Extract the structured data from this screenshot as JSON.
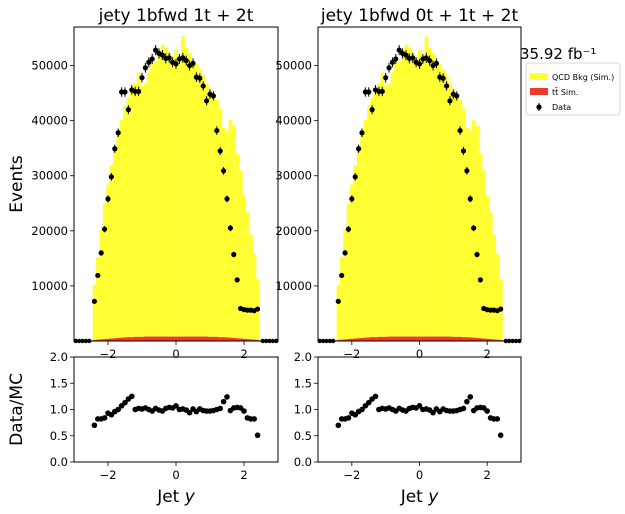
{
  "lumi_label": "35.92 fb⁻¹",
  "legend": [
    {
      "label": "QCD Bkg (Sim.)",
      "color": "#ffff33",
      "kind": "patch"
    },
    {
      "label": "tt̄ Sim.",
      "color": "#ee3a2d",
      "kind": "patch"
    },
    {
      "label": "Data",
      "color": "#000000",
      "kind": "marker"
    }
  ],
  "chart_data": [
    {
      "type": "bar",
      "title": "jety  1bfwd 1t + 2t",
      "xlabel": "",
      "ylabel": "Events",
      "xlim": [
        -3,
        3
      ],
      "ylim": [
        0,
        57000
      ],
      "x_ticks": [
        -2,
        0,
        2
      ],
      "y_ticks": [
        10000,
        20000,
        30000,
        40000,
        50000
      ],
      "y_tick_labels": [
        "10000",
        "20000",
        "30000",
        "40000",
        "50000"
      ],
      "bin_centers": [
        -2.4,
        -2.3,
        -2.2,
        -2.1,
        -2.0,
        -1.9,
        -1.8,
        -1.7,
        -1.6,
        -1.5,
        -1.4,
        -1.3,
        -1.2,
        -1.1,
        -1.0,
        -0.9,
        -0.8,
        -0.7,
        -0.6,
        -0.5,
        -0.4,
        -0.3,
        -0.2,
        -0.1,
        0.0,
        0.1,
        0.2,
        0.3,
        0.4,
        0.5,
        0.6,
        0.7,
        0.8,
        0.9,
        1.0,
        1.1,
        1.2,
        1.3,
        1.4,
        1.5,
        1.6,
        1.7,
        1.8,
        1.9,
        2.0,
        2.1,
        2.2,
        2.3,
        2.4
      ],
      "series": [
        {
          "name": "QCD Bkg (Sim.)",
          "color": "#ffff33",
          "values": [
            10000,
            15000,
            20000,
            24500,
            28000,
            31500,
            34500,
            37500,
            39500,
            42000,
            43500,
            44500,
            46000,
            48000,
            45500,
            46000,
            48000,
            49500,
            50000,
            51500,
            53000,
            52500,
            51500,
            50500,
            52000,
            51000,
            54500,
            52500,
            51500,
            50000,
            49500,
            48500,
            47500,
            46000,
            45000,
            44000,
            43000,
            41500,
            38000,
            37500,
            39500,
            38500,
            33500,
            30500,
            26000,
            23000,
            19000,
            15500,
            11000
          ]
        },
        {
          "name": "tt̄ Sim.",
          "color": "#ee3a2d",
          "values": [
            200,
            250,
            300,
            350,
            400,
            450,
            500,
            550,
            600,
            650,
            700,
            700,
            750,
            750,
            750,
            800,
            800,
            800,
            800,
            800,
            800,
            800,
            800,
            800,
            800,
            800,
            800,
            800,
            800,
            800,
            800,
            800,
            800,
            800,
            750,
            750,
            750,
            700,
            700,
            650,
            600,
            550,
            500,
            450,
            400,
            350,
            300,
            250,
            200
          ]
        },
        {
          "name": "Data",
          "color": "#000000",
          "values": [
            7200,
            11900,
            16000,
            20300,
            25800,
            29800,
            34900,
            37800,
            45200,
            45200,
            42000,
            45600,
            45300,
            45300,
            47800,
            49600,
            50600,
            51200,
            52800,
            52200,
            51900,
            51300,
            51400,
            50600,
            50300,
            51200,
            51400,
            50900,
            50000,
            50400,
            47900,
            47700,
            46300,
            43600,
            44800,
            44500,
            38200,
            34500,
            30900,
            25800,
            20500,
            15700,
            11100,
            5900,
            5700,
            5600,
            5600,
            5500,
            5800
          ]
        }
      ],
      "zero_data_outside": true
    },
    {
      "type": "bar",
      "title": "jety  1bfwd 0t + 1t + 2t",
      "xlabel": "",
      "ylabel": "",
      "xlim": [
        -3,
        3
      ],
      "ylim": [
        0,
        57000
      ],
      "x_ticks": [
        -2,
        0,
        2
      ],
      "y_ticks": [
        10000,
        20000,
        30000,
        40000,
        50000
      ],
      "y_tick_labels": [
        "10000",
        "20000",
        "30000",
        "40000",
        "50000"
      ],
      "bin_centers": [
        -2.4,
        -2.3,
        -2.2,
        -2.1,
        -2.0,
        -1.9,
        -1.8,
        -1.7,
        -1.6,
        -1.5,
        -1.4,
        -1.3,
        -1.2,
        -1.1,
        -1.0,
        -0.9,
        -0.8,
        -0.7,
        -0.6,
        -0.5,
        -0.4,
        -0.3,
        -0.2,
        -0.1,
        0.0,
        0.1,
        0.2,
        0.3,
        0.4,
        0.5,
        0.6,
        0.7,
        0.8,
        0.9,
        1.0,
        1.1,
        1.2,
        1.3,
        1.4,
        1.5,
        1.6,
        1.7,
        1.8,
        1.9,
        2.0,
        2.1,
        2.2,
        2.3,
        2.4
      ],
      "series": [
        {
          "name": "QCD Bkg (Sim.)",
          "color": "#ffff33",
          "values": [
            10000,
            15000,
            20000,
            24500,
            28000,
            31500,
            34500,
            37500,
            39500,
            42000,
            43500,
            44500,
            46000,
            48000,
            45500,
            46000,
            48000,
            49500,
            50000,
            51500,
            53000,
            52500,
            51500,
            50500,
            52000,
            51000,
            54500,
            52500,
            51500,
            50000,
            49500,
            48500,
            47500,
            46000,
            45000,
            44000,
            43000,
            41500,
            38000,
            37500,
            39500,
            38500,
            33500,
            30500,
            26000,
            23000,
            19000,
            15500,
            11000
          ]
        },
        {
          "name": "tt̄ Sim.",
          "color": "#ee3a2d",
          "values": [
            200,
            250,
            300,
            350,
            400,
            450,
            500,
            550,
            600,
            650,
            700,
            700,
            750,
            750,
            750,
            800,
            800,
            800,
            800,
            800,
            800,
            800,
            800,
            800,
            800,
            800,
            800,
            800,
            800,
            800,
            800,
            800,
            800,
            800,
            750,
            750,
            750,
            700,
            700,
            650,
            600,
            550,
            500,
            450,
            400,
            350,
            300,
            250,
            200
          ]
        },
        {
          "name": "Data",
          "color": "#000000",
          "values": [
            7200,
            11900,
            16000,
            20300,
            25800,
            29800,
            34900,
            37800,
            45200,
            45200,
            42000,
            45600,
            45300,
            45300,
            47800,
            49600,
            50600,
            51200,
            52800,
            52200,
            51900,
            51300,
            51400,
            50600,
            50300,
            51200,
            51400,
            50900,
            50000,
            50400,
            47900,
            47700,
            46300,
            43600,
            44800,
            44500,
            38200,
            34500,
            30900,
            25800,
            20500,
            15700,
            11100,
            5900,
            5700,
            5600,
            5600,
            5500,
            5800
          ]
        }
      ],
      "zero_data_outside": true
    },
    {
      "type": "scatter",
      "title": "",
      "xlabel": "Jet y",
      "ylabel": "Data/MC",
      "xlim": [
        -3,
        3
      ],
      "ylim": [
        0,
        2
      ],
      "x_ticks": [
        -2,
        0,
        2
      ],
      "y_ticks": [
        0,
        0.5,
        1,
        1.5,
        2
      ],
      "y_tick_labels": [
        "0.0",
        "0.5",
        "1.0",
        "1.5",
        "2.0"
      ],
      "x": [
        -2.4,
        -2.3,
        -2.2,
        -2.1,
        -2.0,
        -1.9,
        -1.8,
        -1.7,
        -1.6,
        -1.5,
        -1.4,
        -1.3,
        -1.2,
        -1.1,
        -1.0,
        -0.9,
        -0.8,
        -0.7,
        -0.6,
        -0.5,
        -0.4,
        -0.3,
        -0.2,
        -0.1,
        0.0,
        0.1,
        0.2,
        0.3,
        0.4,
        0.5,
        0.6,
        0.7,
        0.8,
        0.9,
        1.0,
        1.1,
        1.2,
        1.3,
        1.4,
        1.5,
        1.6,
        1.7,
        1.8,
        1.9,
        2.0,
        2.1,
        2.2,
        2.3,
        2.4
      ],
      "y": [
        0.7,
        0.82,
        0.82,
        0.84,
        0.93,
        0.9,
        0.96,
        1.0,
        1.07,
        1.13,
        1.2,
        1.25,
        1.0,
        1.02,
        1.01,
        1.03,
        1.0,
        0.97,
        1.02,
        0.99,
        0.97,
        1.02,
        1.04,
        1.03,
        1.07,
        1.0,
        1.01,
        0.99,
        0.94,
        1.01,
        0.96,
        1.01,
        0.98,
        0.97,
        0.97,
        0.98,
        1.0,
        1.02,
        1.15,
        1.24,
        0.98,
        1.03,
        1.04,
        1.03,
        0.97,
        0.84,
        0.82,
        0.82,
        0.51
      ]
    },
    {
      "type": "scatter",
      "title": "",
      "xlabel": "Jet y",
      "ylabel": "",
      "xlim": [
        -3,
        3
      ],
      "ylim": [
        0,
        2
      ],
      "x_ticks": [
        -2,
        0,
        2
      ],
      "y_ticks": [
        0,
        0.5,
        1,
        1.5,
        2
      ],
      "y_tick_labels": [
        "0.0",
        "0.5",
        "1.0",
        "1.5",
        "2.0"
      ],
      "x": [
        -2.4,
        -2.3,
        -2.2,
        -2.1,
        -2.0,
        -1.9,
        -1.8,
        -1.7,
        -1.6,
        -1.5,
        -1.4,
        -1.3,
        -1.2,
        -1.1,
        -1.0,
        -0.9,
        -0.8,
        -0.7,
        -0.6,
        -0.5,
        -0.4,
        -0.3,
        -0.2,
        -0.1,
        0.0,
        0.1,
        0.2,
        0.3,
        0.4,
        0.5,
        0.6,
        0.7,
        0.8,
        0.9,
        1.0,
        1.1,
        1.2,
        1.3,
        1.4,
        1.5,
        1.6,
        1.7,
        1.8,
        1.9,
        2.0,
        2.1,
        2.2,
        2.3,
        2.4
      ],
      "y": [
        0.7,
        0.82,
        0.82,
        0.84,
        0.93,
        0.9,
        0.96,
        1.0,
        1.07,
        1.13,
        1.2,
        1.25,
        1.0,
        1.02,
        1.01,
        1.03,
        1.0,
        0.97,
        1.02,
        0.99,
        0.97,
        1.02,
        1.04,
        1.03,
        1.07,
        1.0,
        1.01,
        0.99,
        0.94,
        1.01,
        0.96,
        1.01,
        0.98,
        0.97,
        0.97,
        0.98,
        1.0,
        1.02,
        1.15,
        1.24,
        0.98,
        1.03,
        1.04,
        1.03,
        0.97,
        0.84,
        0.82,
        0.82,
        0.51
      ]
    }
  ]
}
